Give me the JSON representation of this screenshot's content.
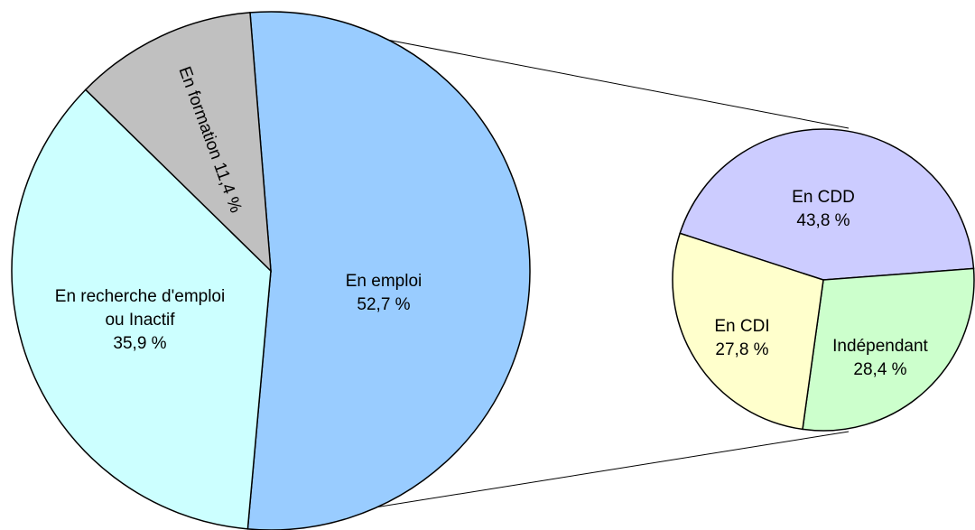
{
  "chart_data": [
    {
      "type": "pie",
      "categories": [
        "En emploi",
        "En recherche d'emploi ou Inactif",
        "En formation"
      ],
      "values": [
        52.7,
        35.9,
        11.4
      ],
      "value_labels": [
        "52,7 %",
        "35,9 %",
        "11,4 %"
      ],
      "colors": [
        "#99ccff",
        "#ccffff",
        "#c0c0c0"
      ]
    },
    {
      "type": "pie",
      "categories": [
        "En CDD",
        "Indépendant",
        "En CDI"
      ],
      "values": [
        43.8,
        28.4,
        27.8
      ],
      "value_labels": [
        "43,8 %",
        "28,4 %",
        "27,8 %"
      ],
      "colors": [
        "#ccccff",
        "#ccffcc",
        "#ffffcc"
      ]
    }
  ]
}
